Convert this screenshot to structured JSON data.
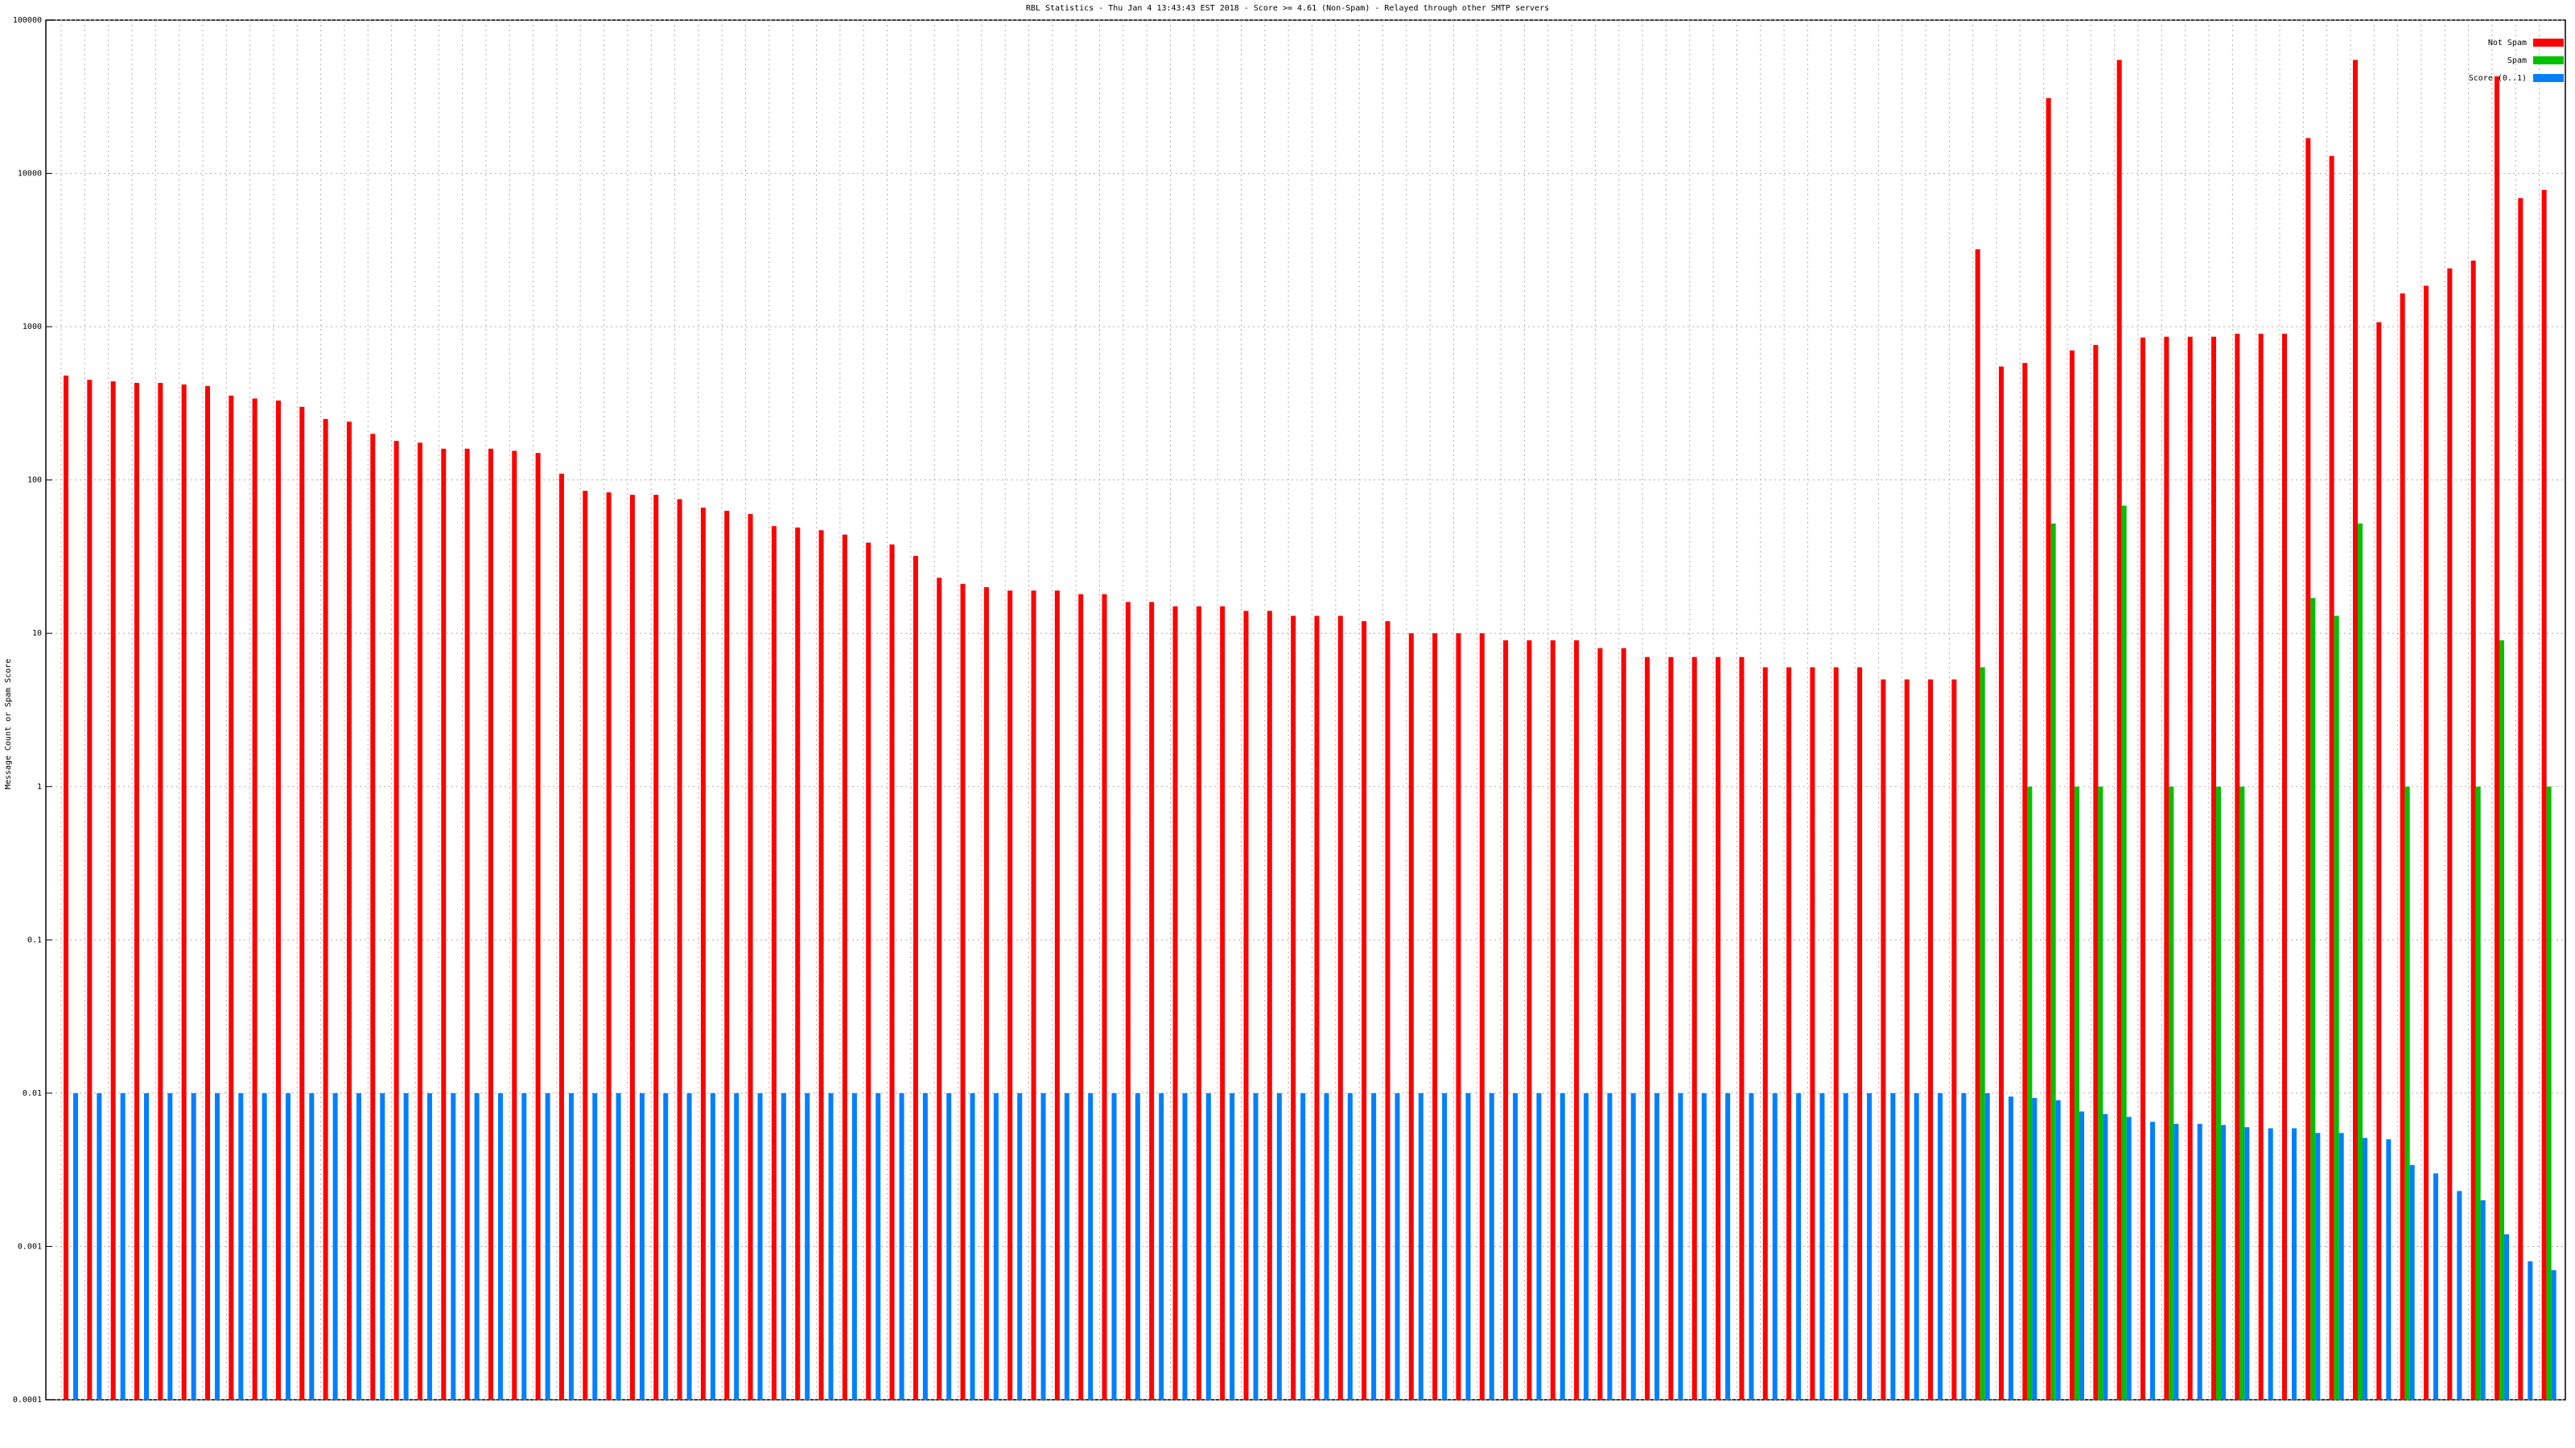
{
  "chart_data": {
    "type": "bar",
    "title": "RBL Statistics - Thu Jan  4 13:43:43 EST 2018 - Score >= 4.61 (Non-Spam) - Relayed through other SMTP servers",
    "y_label": "Message Count or Spam Score",
    "log_scale": true,
    "grid": true,
    "legend": "upper right",
    "categories": [
      null,
      null,
      null,
      null,
      null,
      null,
      null,
      null,
      null,
      null,
      null,
      null,
      null,
      null,
      null,
      null,
      null,
      null,
      null,
      null,
      null,
      null,
      null,
      null,
      null,
      null,
      null,
      null,
      null,
      null,
      null,
      null,
      null,
      null,
      null,
      null,
      null,
      null,
      null,
      null,
      null,
      null,
      null,
      null,
      null,
      null,
      null,
      null,
      null,
      null,
      null,
      null,
      null,
      null,
      null,
      null,
      null,
      null,
      null,
      null,
      null,
      null,
      null,
      null,
      null,
      null,
      null,
      null,
      null,
      null,
      null,
      null,
      null,
      null,
      null,
      null,
      null,
      null,
      null,
      null,
      null,
      null,
      null,
      null,
      null,
      null,
      null,
      null,
      null,
      null,
      null,
      null,
      null,
      null,
      null,
      null,
      null,
      null,
      null,
      null,
      null,
      null,
      null,
      null,
      null,
      null
    ],
    "ylim": [
      0.0001,
      100000
    ],
    "yticks": [
      0.0001,
      0.001,
      0.01,
      0.1,
      1,
      10,
      100,
      1000,
      10000,
      100000
    ],
    "series": [
      {
        "name": "Not Spam",
        "color": "#ff0000",
        "values": [
          480,
          450,
          440,
          430,
          430,
          420,
          410,
          355,
          340,
          330,
          300,
          250,
          240,
          200,
          180,
          175,
          160,
          160,
          160,
          155,
          150,
          110,
          85,
          83,
          80,
          80,
          75,
          66,
          63,
          60,
          50,
          49,
          47,
          44,
          39,
          38,
          32,
          23,
          21,
          20,
          19,
          19,
          19,
          18,
          18,
          16,
          16,
          15,
          15,
          15,
          14,
          14,
          13,
          13,
          13,
          12,
          12,
          10,
          10,
          10,
          10,
          9,
          9,
          9,
          9,
          8,
          8,
          7,
          7,
          7,
          7,
          7,
          6,
          6,
          6,
          6,
          6,
          5,
          5,
          5,
          5,
          3200,
          550,
          580,
          31000,
          700,
          760,
          55000,
          850,
          860,
          860,
          860,
          900,
          900,
          900,
          17000,
          13000,
          55000,
          1070,
          1650,
          1850,
          2400,
          2700,
          43000,
          6900,
          7800
        ]
      },
      {
        "name": "Spam",
        "color": "#00c000",
        "values": [
          0,
          0,
          0,
          0,
          0,
          0,
          0,
          0,
          0,
          0,
          0,
          0,
          0,
          0,
          0,
          0,
          0,
          0,
          0,
          0,
          0,
          0,
          0,
          0,
          0,
          0,
          0,
          0,
          0,
          0,
          0,
          0,
          0,
          0,
          0,
          0,
          0,
          0,
          0,
          0,
          0,
          0,
          0,
          0,
          0,
          0,
          0,
          0,
          0,
          0,
          0,
          0,
          0,
          0,
          0,
          0,
          0,
          0,
          0,
          0,
          0,
          0,
          0,
          0,
          0,
          0,
          0,
          0,
          0,
          0,
          0,
          0,
          0,
          0,
          0,
          0,
          0,
          0,
          0,
          0,
          0,
          6,
          0,
          1,
          52,
          1,
          1,
          68,
          0,
          1,
          0,
          1,
          1,
          0,
          0,
          17,
          13,
          52,
          0,
          1,
          0,
          0,
          1,
          9,
          0,
          1
        ]
      },
      {
        "name": "Score (0..1)",
        "color": "#0080ff",
        "values": [
          0.01,
          0.01,
          0.01,
          0.01,
          0.01,
          0.01,
          0.01,
          0.01,
          0.01,
          0.01,
          0.01,
          0.01,
          0.01,
          0.01,
          0.01,
          0.01,
          0.01,
          0.01,
          0.01,
          0.01,
          0.01,
          0.01,
          0.01,
          0.01,
          0.01,
          0.01,
          0.01,
          0.01,
          0.01,
          0.01,
          0.01,
          0.01,
          0.01,
          0.01,
          0.01,
          0.01,
          0.01,
          0.01,
          0.01,
          0.01,
          0.01,
          0.01,
          0.01,
          0.01,
          0.01,
          0.01,
          0.01,
          0.01,
          0.01,
          0.01,
          0.01,
          0.01,
          0.01,
          0.01,
          0.01,
          0.01,
          0.01,
          0.01,
          0.01,
          0.01,
          0.01,
          0.01,
          0.01,
          0.01,
          0.01,
          0.01,
          0.01,
          0.01,
          0.01,
          0.01,
          0.01,
          0.01,
          0.01,
          0.01,
          0.01,
          0.01,
          0.01,
          0.01,
          0.01,
          0.01,
          0.01,
          0.01,
          0.0095,
          0.0093,
          0.009,
          0.0076,
          0.0073,
          0.007,
          0.0065,
          0.0063,
          0.0063,
          0.0062,
          0.006,
          0.0059,
          0.0059,
          0.0055,
          0.0055,
          0.0051,
          0.005,
          0.0034,
          0.003,
          0.0023,
          0.002,
          0.0012,
          0.0008,
          0.0007
        ]
      }
    ]
  }
}
